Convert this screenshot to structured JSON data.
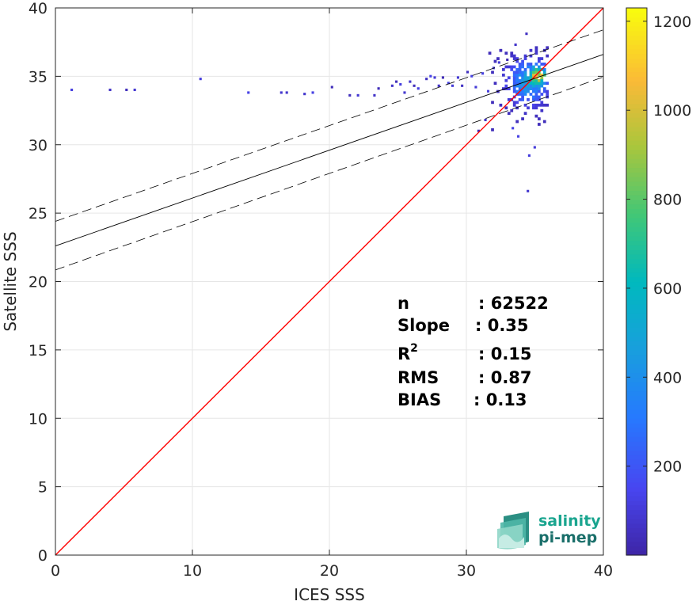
{
  "chart_data": {
    "type": "heatmap",
    "xlabel": "ICES SSS",
    "ylabel": "Satellite SSS",
    "xlim": [
      0,
      40
    ],
    "ylim": [
      0,
      40
    ],
    "xticks": [
      0,
      10,
      20,
      30,
      40
    ],
    "yticks": [
      0,
      5,
      10,
      15,
      20,
      25,
      30,
      35,
      40
    ],
    "grid": true,
    "colorbar": {
      "range": [
        0,
        1230
      ],
      "ticks": [
        200,
        400,
        600,
        800,
        1000,
        1200
      ],
      "colormap": "parula"
    },
    "identity_line": {
      "x": [
        0,
        40
      ],
      "y": [
        0,
        40
      ],
      "color": "#ff0000"
    },
    "regression_line": {
      "x": [
        0,
        40
      ],
      "y": [
        22.6,
        36.6
      ],
      "color": "#000000",
      "style": "solid"
    },
    "confidence_lines": [
      {
        "x": [
          0,
          40
        ],
        "y": [
          24.4,
          38.4
        ],
        "style": "dashed"
      },
      {
        "x": [
          0,
          40
        ],
        "y": [
          20.85,
          34.95
        ],
        "style": "dashed"
      }
    ],
    "density_center": {
      "x": 34.4,
      "y": 34.5,
      "spread_x": 0.9,
      "spread_y": 1.0
    },
    "outlier_points": [
      [
        1.2,
        34.0
      ],
      [
        4.0,
        34.0
      ],
      [
        5.2,
        34.0
      ],
      [
        5.8,
        34.0
      ],
      [
        10.6,
        34.8
      ],
      [
        14.1,
        33.8
      ],
      [
        16.5,
        33.8
      ],
      [
        16.9,
        33.8
      ],
      [
        18.2,
        33.7
      ],
      [
        18.8,
        33.8
      ],
      [
        20.2,
        34.2
      ],
      [
        21.5,
        33.6
      ],
      [
        22.1,
        33.6
      ],
      [
        23.3,
        33.6
      ],
      [
        23.6,
        34.1
      ],
      [
        24.6,
        34.3
      ],
      [
        24.9,
        34.6
      ],
      [
        25.2,
        34.4
      ],
      [
        25.5,
        33.8
      ],
      [
        25.9,
        34.6
      ],
      [
        26.2,
        34.3
      ],
      [
        26.5,
        34.1
      ],
      [
        27.1,
        34.8
      ],
      [
        27.4,
        35.0
      ],
      [
        27.7,
        34.9
      ],
      [
        28.0,
        34.3
      ],
      [
        28.3,
        34.9
      ],
      [
        28.7,
        34.5
      ],
      [
        29.0,
        34.3
      ],
      [
        29.4,
        34.9
      ],
      [
        29.7,
        34.3
      ],
      [
        30.1,
        35.3
      ],
      [
        30.4,
        35.0
      ],
      [
        30.7,
        34.2
      ],
      [
        31.2,
        35.2
      ],
      [
        31.6,
        33.9
      ],
      [
        32.0,
        35.6
      ],
      [
        32.4,
        36.0
      ],
      [
        33.0,
        36.2
      ],
      [
        33.6,
        37.3
      ],
      [
        34.4,
        38.1
      ],
      [
        33.8,
        30.6
      ],
      [
        34.6,
        29.2
      ],
      [
        30.9,
        31.0
      ],
      [
        34.5,
        26.6
      ],
      [
        31.4,
        31.8
      ],
      [
        33.4,
        31.2
      ],
      [
        35.0,
        29.8
      ]
    ],
    "stats": [
      {
        "label": "n",
        "value": ": 62522"
      },
      {
        "label": "Slope",
        "value": ": 0.35"
      },
      {
        "label": "R",
        "sup": "2",
        "value": ": 0.15"
      },
      {
        "label": "RMS",
        "value": ": 0.87"
      },
      {
        "label": "BIAS",
        "value": ": 0.13"
      }
    ]
  },
  "logo": {
    "line1": "salinity",
    "line2": "pi-mep",
    "color": "#1aa58f"
  }
}
